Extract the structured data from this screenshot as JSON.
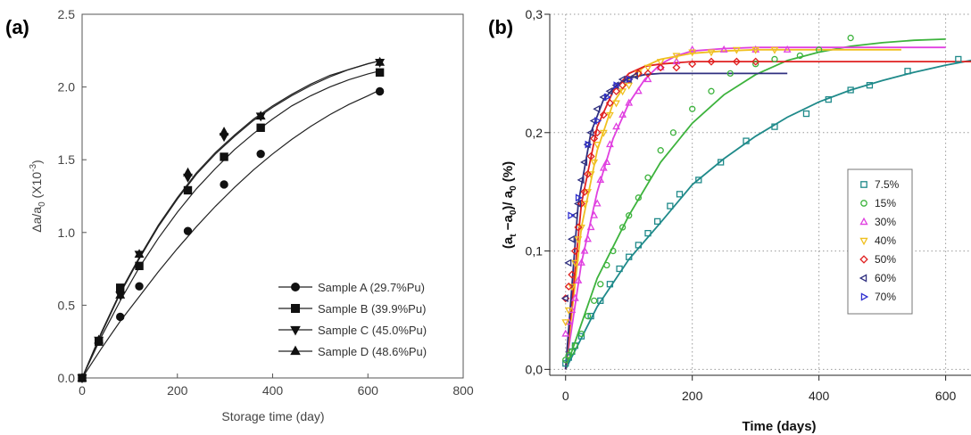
{
  "chart_data": [
    {
      "panel_label": "(a)",
      "type": "line",
      "xlabel": "Storage time (day)",
      "ylabel": "Δa/a",
      "ylabel_sub": "0",
      "ylabel_unit": " (X10",
      "ylabel_exp": "-3",
      "ylabel_close": ")",
      "xlim": [
        0,
        800
      ],
      "ylim": [
        0,
        2.5
      ],
      "xticks": [
        "0",
        "200",
        "400",
        "600",
        "800"
      ],
      "yticks": [
        "0.0",
        "0.5",
        "1.0",
        "1.5",
        "2.0",
        "2.5"
      ],
      "grid": false,
      "legend_position": "bottom-right",
      "series": [
        {
          "name": "Sample A (29.7%Pu)",
          "marker": "circle",
          "x": [
            0,
            35,
            80,
            120,
            222,
            298,
            375,
            625
          ],
          "y": [
            0,
            0.25,
            0.42,
            0.63,
            1.01,
            1.33,
            1.54,
            1.97
          ],
          "fit_x": [
            0,
            40,
            80,
            120,
            160,
            200,
            240,
            280,
            320,
            360,
            400,
            440,
            480,
            520,
            560,
            600,
            625
          ],
          "fit_y": [
            0,
            0.2,
            0.39,
            0.56,
            0.73,
            0.89,
            1.04,
            1.18,
            1.31,
            1.43,
            1.54,
            1.64,
            1.73,
            1.81,
            1.88,
            1.94,
            1.98
          ]
        },
        {
          "name": "Sample B (39.9%Pu)",
          "marker": "square",
          "x": [
            0,
            35,
            80,
            120,
            222,
            298,
            375,
            625
          ],
          "y": [
            0,
            0.25,
            0.62,
            0.77,
            1.29,
            1.52,
            1.72,
            2.1
          ],
          "fit_x": [
            0,
            40,
            80,
            120,
            160,
            200,
            240,
            280,
            320,
            360,
            400,
            440,
            480,
            520,
            560,
            600,
            625
          ],
          "fit_y": [
            0,
            0.28,
            0.53,
            0.76,
            0.96,
            1.14,
            1.3,
            1.44,
            1.57,
            1.68,
            1.78,
            1.87,
            1.94,
            2.0,
            2.05,
            2.09,
            2.11
          ]
        },
        {
          "name": "Sample C (45.0%Pu)",
          "marker": "triangle-down",
          "x": [
            0,
            35,
            80,
            120,
            222,
            298,
            375,
            625
          ],
          "y": [
            0,
            0.26,
            0.57,
            0.85,
            1.38,
            1.66,
            1.8,
            2.17
          ],
          "fit_x": [
            0,
            40,
            80,
            120,
            160,
            200,
            240,
            280,
            320,
            360,
            400,
            440,
            480,
            520,
            560,
            600,
            625
          ],
          "fit_y": [
            0,
            0.3,
            0.58,
            0.82,
            1.04,
            1.23,
            1.4,
            1.54,
            1.66,
            1.77,
            1.86,
            1.94,
            2.01,
            2.07,
            2.12,
            2.16,
            2.18
          ]
        },
        {
          "name": "Sample D (48.6%Pu)",
          "marker": "triangle-up",
          "x": [
            0,
            35,
            80,
            120,
            222,
            298,
            375,
            625
          ],
          "y": [
            0,
            0.26,
            0.57,
            0.85,
            1.41,
            1.69,
            1.8,
            2.17
          ],
          "fit_x": [
            0,
            40,
            80,
            120,
            160,
            200,
            240,
            280,
            320,
            360,
            400,
            440,
            480,
            520,
            560,
            600,
            625
          ],
          "fit_y": [
            0,
            0.31,
            0.59,
            0.83,
            1.05,
            1.24,
            1.41,
            1.55,
            1.67,
            1.78,
            1.87,
            1.95,
            2.02,
            2.08,
            2.12,
            2.16,
            2.18
          ]
        }
      ]
    },
    {
      "panel_label": "(b)",
      "type": "scatter",
      "xlabel": "Time (days)",
      "ylabel_parts": [
        "(a",
        "t",
        " −a",
        "0",
        ")/ a",
        "0",
        " (%)"
      ],
      "xlim": [
        -25,
        640
      ],
      "ylim": [
        -0.005,
        0.3
      ],
      "xticks": [
        "0",
        "200",
        "400",
        "600"
      ],
      "yticks": [
        "0,0",
        "0,1",
        "0,2",
        "0,3"
      ],
      "grid": true,
      "legend_position": "center-right",
      "series": [
        {
          "name": "7.5%",
          "color": "#1f8a8a",
          "marker": "square",
          "x": [
            0,
            5,
            10,
            15,
            25,
            40,
            55,
            70,
            85,
            100,
            115,
            130,
            145,
            165,
            180,
            210,
            245,
            285,
            330,
            380,
            415,
            450,
            480,
            540,
            620
          ],
          "y": [
            0.005,
            0.01,
            0.015,
            0.02,
            0.028,
            0.045,
            0.058,
            0.072,
            0.085,
            0.095,
            0.105,
            0.115,
            0.125,
            0.138,
            0.148,
            0.16,
            0.175,
            0.193,
            0.205,
            0.216,
            0.228,
            0.236,
            0.24,
            0.252,
            0.262
          ],
          "fit_x": [
            0,
            50,
            100,
            150,
            200,
            250,
            300,
            350,
            400,
            450,
            500,
            550,
            600,
            640
          ],
          "fit_y": [
            0.0,
            0.053,
            0.093,
            0.124,
            0.156,
            0.178,
            0.197,
            0.213,
            0.226,
            0.236,
            0.244,
            0.251,
            0.257,
            0.261
          ]
        },
        {
          "name": "15%",
          "color": "#3db33d",
          "marker": "circle",
          "x": [
            0,
            5,
            10,
            15,
            25,
            35,
            45,
            55,
            65,
            75,
            90,
            100,
            115,
            130,
            150,
            170,
            200,
            230,
            260,
            300,
            330,
            370,
            400,
            450
          ],
          "y": [
            0.008,
            0.012,
            0.015,
            0.02,
            0.03,
            0.045,
            0.058,
            0.072,
            0.088,
            0.1,
            0.12,
            0.13,
            0.145,
            0.162,
            0.185,
            0.2,
            0.22,
            0.235,
            0.25,
            0.258,
            0.262,
            0.265,
            0.27,
            0.28
          ],
          "fit_x": [
            0,
            50,
            100,
            150,
            200,
            250,
            300,
            350,
            400,
            450,
            500,
            550,
            600
          ],
          "fit_y": [
            0.0,
            0.077,
            0.13,
            0.175,
            0.208,
            0.232,
            0.249,
            0.261,
            0.268,
            0.273,
            0.276,
            0.278,
            0.279
          ]
        },
        {
          "name": "30%",
          "color": "#e040e0",
          "marker": "triangle-up",
          "x": [
            0,
            5,
            10,
            15,
            20,
            25,
            30,
            35,
            40,
            45,
            50,
            55,
            60,
            65,
            70,
            80,
            90,
            100,
            115,
            130,
            150,
            175,
            200,
            250,
            300,
            350
          ],
          "y": [
            0.03,
            0.04,
            0.05,
            0.06,
            0.075,
            0.09,
            0.1,
            0.11,
            0.12,
            0.13,
            0.14,
            0.16,
            0.17,
            0.175,
            0.19,
            0.205,
            0.215,
            0.225,
            0.235,
            0.245,
            0.255,
            0.26,
            0.27,
            0.27,
            0.27,
            0.27
          ],
          "fit_x": [
            0,
            25,
            50,
            75,
            100,
            125,
            150,
            175,
            200,
            250,
            300,
            400,
            500,
            600
          ],
          "fit_y": [
            0.0,
            0.09,
            0.15,
            0.195,
            0.225,
            0.245,
            0.258,
            0.265,
            0.269,
            0.271,
            0.272,
            0.272,
            0.272,
            0.272
          ]
        },
        {
          "name": "40%",
          "color": "#f0c020",
          "marker": "triangle-down",
          "x": [
            0,
            5,
            10,
            15,
            20,
            25,
            30,
            35,
            40,
            45,
            50,
            60,
            70,
            80,
            90,
            100,
            115,
            130,
            150,
            175,
            200,
            230,
            270,
            300,
            330
          ],
          "y": [
            0.04,
            0.05,
            0.07,
            0.09,
            0.11,
            0.12,
            0.14,
            0.15,
            0.165,
            0.175,
            0.19,
            0.2,
            0.215,
            0.225,
            0.235,
            0.24,
            0.25,
            0.255,
            0.26,
            0.265,
            0.268,
            0.268,
            0.27,
            0.27,
            0.27
          ],
          "fit_x": [
            0,
            25,
            50,
            75,
            100,
            125,
            150,
            200,
            250,
            300,
            400,
            500,
            530
          ],
          "fit_y": [
            0.0,
            0.12,
            0.185,
            0.225,
            0.245,
            0.256,
            0.262,
            0.267,
            0.269,
            0.27,
            0.27,
            0.27,
            0.27
          ]
        },
        {
          "name": "50%",
          "color": "#e02020",
          "marker": "diamond",
          "x": [
            0,
            5,
            10,
            15,
            20,
            25,
            30,
            35,
            40,
            45,
            50,
            60,
            70,
            80,
            90,
            100,
            115,
            130,
            150,
            175,
            200,
            230,
            270,
            300
          ],
          "y": [
            0.06,
            0.07,
            0.08,
            0.1,
            0.12,
            0.14,
            0.15,
            0.165,
            0.18,
            0.195,
            0.2,
            0.215,
            0.225,
            0.235,
            0.24,
            0.245,
            0.25,
            0.25,
            0.255,
            0.255,
            0.258,
            0.26,
            0.26,
            0.26
          ],
          "fit_x": [
            0,
            25,
            50,
            75,
            100,
            125,
            150,
            200,
            300,
            400,
            500,
            600,
            640
          ],
          "fit_y": [
            0.0,
            0.14,
            0.205,
            0.235,
            0.25,
            0.256,
            0.258,
            0.26,
            0.26,
            0.26,
            0.26,
            0.26,
            0.26
          ]
        },
        {
          "name": "60%",
          "color": "#303080",
          "marker": "triangle-left",
          "x": [
            0,
            5,
            10,
            15,
            20,
            25,
            30,
            35,
            40,
            45,
            50,
            60,
            70,
            80,
            90,
            100,
            110
          ],
          "y": [
            0.06,
            0.09,
            0.11,
            0.13,
            0.14,
            0.16,
            0.175,
            0.19,
            0.2,
            0.21,
            0.22,
            0.23,
            0.235,
            0.24,
            0.245,
            0.245,
            0.248
          ],
          "fit_x": [
            0,
            20,
            40,
            60,
            80,
            100,
            125,
            150,
            200,
            250,
            300,
            350
          ],
          "fit_y": [
            0.0,
            0.14,
            0.2,
            0.228,
            0.24,
            0.246,
            0.249,
            0.25,
            0.25,
            0.25,
            0.25,
            0.25
          ]
        },
        {
          "name": "70%",
          "color": "#3030d0",
          "marker": "triangle-right",
          "x": [
            8,
            20,
            35,
            50,
            65,
            80,
            100
          ],
          "y": [
            0.13,
            0.145,
            0.19,
            0.21,
            0.23,
            0.24,
            0.245
          ],
          "fit_x": [],
          "fit_y": []
        }
      ]
    }
  ]
}
